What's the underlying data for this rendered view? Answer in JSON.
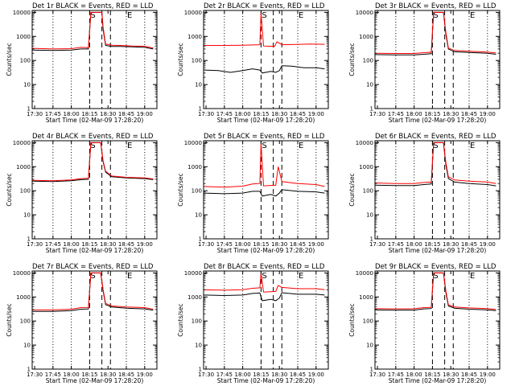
{
  "x_ticks": [
    "17:30",
    "17:45",
    "18:00",
    "18:15",
    "18:30",
    "18:45",
    "19:00"
  ],
  "y_ticks": [
    "1",
    "10",
    "100",
    "1000",
    "10000"
  ],
  "xlabel": "Start Time (02-Mar-09 17:28:20)",
  "ylabel": "Counts/sec",
  "markers": {
    "start": "S",
    "end": "E"
  },
  "colors": {
    "events": "#000000",
    "lld": "#ff0000",
    "frame": "#000000"
  },
  "chart_data": [
    {
      "type": "line",
      "title": "Det 1r BLACK = Events, RED = LLD",
      "xlim": [
        "17:28",
        "19:10"
      ],
      "ylim": [
        1,
        12000
      ],
      "yscale": "log",
      "vlines_dotted": [
        "17:45",
        "18:00",
        "18:45",
        "19:00"
      ],
      "vlines_dashed": [
        "18:15",
        "18:25",
        "18:32"
      ],
      "series": [
        {
          "x": [
            "17:28",
            "17:45",
            "18:00",
            "18:08",
            "18:14",
            "18:16",
            "18:25",
            "18:26",
            "18:28",
            "18:33",
            "18:40",
            "18:50",
            "19:00",
            "19:07"
          ],
          "values": [
            270,
            260,
            270,
            300,
            300,
            10000,
            10000,
            2000,
            420,
            380,
            380,
            370,
            350,
            300
          ]
        },
        {
          "x": [
            "17:28",
            "17:45",
            "18:00",
            "18:08",
            "18:14",
            "18:16",
            "18:25",
            "18:26",
            "18:28",
            "18:33",
            "18:40",
            "18:50",
            "19:00",
            "19:07"
          ],
          "values": [
            320,
            300,
            310,
            350,
            340,
            10000,
            10000,
            2500,
            480,
            430,
            420,
            400,
            390,
            330
          ]
        }
      ]
    },
    {
      "type": "line",
      "title": "Det 2r BLACK = Events, RED = LLD",
      "xlim": [
        "17:28",
        "19:10"
      ],
      "ylim": [
        1,
        12000
      ],
      "yscale": "log",
      "vlines_dotted": [
        "17:45",
        "18:00",
        "18:45",
        "19:00"
      ],
      "vlines_dashed": [
        "18:15",
        "18:25",
        "18:32"
      ],
      "series": [
        {
          "x": [
            "17:28",
            "17:40",
            "17:50",
            "18:00",
            "18:08",
            "18:14",
            "18:16",
            "18:23",
            "18:27",
            "18:30",
            "18:32",
            "18:40",
            "18:50",
            "19:00",
            "19:07"
          ],
          "values": [
            40,
            38,
            32,
            38,
            45,
            40,
            30,
            35,
            32,
            38,
            60,
            58,
            50,
            50,
            45
          ]
        },
        {
          "x": [
            "17:28",
            "17:45",
            "18:00",
            "18:14",
            "18:15",
            "18:17",
            "18:26",
            "18:28",
            "18:32",
            "18:40",
            "18:55",
            "19:07"
          ],
          "values": [
            420,
            420,
            430,
            450,
            10000,
            400,
            380,
            600,
            450,
            460,
            480,
            470
          ]
        }
      ]
    },
    {
      "type": "line",
      "title": "Det 3r BLACK = Events, RED = LLD",
      "xlim": [
        "17:28",
        "19:10"
      ],
      "ylim": [
        1,
        12000
      ],
      "yscale": "log",
      "vlines_dotted": [
        "17:45",
        "18:00",
        "18:45",
        "19:00"
      ],
      "vlines_dashed": [
        "18:15",
        "18:25",
        "18:32"
      ],
      "series": [
        {
          "x": [
            "17:28",
            "17:45",
            "18:00",
            "18:08",
            "18:14",
            "18:16",
            "18:24",
            "18:26",
            "18:28",
            "18:33",
            "18:45",
            "19:00",
            "19:07"
          ],
          "values": [
            175,
            170,
            170,
            180,
            190,
            10000,
            10000,
            1200,
            300,
            230,
            215,
            200,
            180
          ]
        },
        {
          "x": [
            "17:28",
            "17:45",
            "18:00",
            "18:08",
            "18:14",
            "18:16",
            "18:24",
            "18:26",
            "18:28",
            "18:33",
            "18:45",
            "19:00",
            "19:07"
          ],
          "values": [
            200,
            195,
            195,
            210,
            220,
            10000,
            10000,
            1500,
            330,
            260,
            240,
            225,
            205
          ]
        }
      ]
    },
    {
      "type": "line",
      "title": "Det 4r BLACK = Events, RED = LLD",
      "xlim": [
        "17:28",
        "19:10"
      ],
      "ylim": [
        1,
        12000
      ],
      "yscale": "log",
      "vlines_dotted": [
        "17:45",
        "18:00",
        "18:45",
        "19:00"
      ],
      "vlines_dashed": [
        "18:15",
        "18:25",
        "18:32"
      ],
      "series": [
        {
          "x": [
            "17:28",
            "17:45",
            "18:00",
            "18:08",
            "18:14",
            "18:16",
            "18:24",
            "18:26",
            "18:28",
            "18:33",
            "18:45",
            "19:00",
            "19:07"
          ],
          "values": [
            250,
            240,
            260,
            290,
            300,
            10000,
            10000,
            1600,
            600,
            380,
            340,
            320,
            290
          ]
        },
        {
          "x": [
            "17:28",
            "17:45",
            "18:00",
            "18:08",
            "18:14",
            "18:16",
            "18:24",
            "18:26",
            "18:28",
            "18:33",
            "18:45",
            "19:00",
            "19:07"
          ],
          "values": [
            270,
            260,
            280,
            320,
            330,
            10000,
            10000,
            1800,
            650,
            410,
            360,
            340,
            310
          ]
        }
      ]
    },
    {
      "type": "line",
      "title": "Det 5r BLACK = Events, RED = LLD",
      "xlim": [
        "17:28",
        "19:10"
      ],
      "ylim": [
        1,
        12000
      ],
      "yscale": "log",
      "vlines_dotted": [
        "17:45",
        "18:00",
        "18:45",
        "19:00"
      ],
      "vlines_dashed": [
        "18:15",
        "18:25",
        "18:32"
      ],
      "series": [
        {
          "x": [
            "17:28",
            "17:45",
            "18:00",
            "18:08",
            "18:14",
            "18:16",
            "18:23",
            "18:27",
            "18:30",
            "18:32",
            "18:45",
            "19:00",
            "19:07"
          ],
          "values": [
            80,
            75,
            80,
            95,
            95,
            60,
            70,
            60,
            80,
            110,
            95,
            90,
            80
          ]
        },
        {
          "x": [
            "17:28",
            "17:45",
            "18:00",
            "18:08",
            "18:14",
            "18:15",
            "18:17",
            "18:27",
            "18:29",
            "18:32",
            "18:45",
            "19:00",
            "19:07"
          ],
          "values": [
            150,
            140,
            155,
            190,
            200,
            10000,
            160,
            170,
            1000,
            240,
            200,
            180,
            150
          ]
        }
      ]
    },
    {
      "type": "line",
      "title": "Det 6r BLACK = Events, RED = LLD",
      "xlim": [
        "17:28",
        "19:10"
      ],
      "ylim": [
        1,
        12000
      ],
      "yscale": "log",
      "vlines_dotted": [
        "17:45",
        "18:00",
        "18:45",
        "19:00"
      ],
      "vlines_dashed": [
        "18:15",
        "18:25",
        "18:32"
      ],
      "series": [
        {
          "x": [
            "17:28",
            "17:45",
            "18:00",
            "18:08",
            "18:14",
            "18:16",
            "18:24",
            "18:26",
            "18:28",
            "18:33",
            "18:45",
            "19:00",
            "19:07"
          ],
          "values": [
            170,
            165,
            165,
            180,
            190,
            10000,
            10000,
            1200,
            320,
            230,
            200,
            180,
            160
          ]
        },
        {
          "x": [
            "17:28",
            "17:45",
            "18:00",
            "18:08",
            "18:14",
            "18:16",
            "18:24",
            "18:26",
            "18:28",
            "18:33",
            "18:45",
            "19:00",
            "19:07"
          ],
          "values": [
            210,
            200,
            200,
            220,
            230,
            10000,
            10000,
            1500,
            380,
            280,
            250,
            230,
            200
          ]
        }
      ]
    },
    {
      "type": "line",
      "title": "Det 7r BLACK = Events, RED = LLD",
      "xlim": [
        "17:28",
        "19:10"
      ],
      "ylim": [
        1,
        12000
      ],
      "yscale": "log",
      "vlines_dotted": [
        "17:45",
        "18:00",
        "18:45",
        "19:00"
      ],
      "vlines_dashed": [
        "18:15",
        "18:25",
        "18:32"
      ],
      "series": [
        {
          "x": [
            "17:28",
            "17:45",
            "18:00",
            "18:08",
            "18:14",
            "18:16",
            "18:24",
            "18:26",
            "18:28",
            "18:33",
            "18:45",
            "19:00",
            "19:07"
          ],
          "values": [
            250,
            250,
            270,
            310,
            320,
            10000,
            10000,
            1800,
            480,
            380,
            340,
            320,
            280
          ]
        },
        {
          "x": [
            "17:28",
            "17:45",
            "18:00",
            "18:08",
            "18:14",
            "18:16",
            "18:24",
            "18:26",
            "18:28",
            "18:33",
            "18:45",
            "19:00",
            "19:07"
          ],
          "values": [
            290,
            290,
            310,
            360,
            370,
            10000,
            10000,
            2100,
            540,
            420,
            380,
            360,
            310
          ]
        }
      ]
    },
    {
      "type": "line",
      "title": "Det 8r BLACK = Events, RED = LLD",
      "xlim": [
        "17:28",
        "19:10"
      ],
      "ylim": [
        1,
        12000
      ],
      "yscale": "log",
      "vlines_dotted": [
        "17:45",
        "18:00",
        "18:45",
        "19:00"
      ],
      "vlines_dashed": [
        "18:15",
        "18:25",
        "18:32"
      ],
      "series": [
        {
          "x": [
            "17:28",
            "17:45",
            "18:00",
            "18:08",
            "18:14",
            "18:16",
            "18:23",
            "18:27",
            "18:30",
            "18:32",
            "18:45",
            "19:00",
            "19:07"
          ],
          "values": [
            1200,
            1150,
            1200,
            1400,
            1450,
            700,
            800,
            700,
            900,
            1500,
            1300,
            1300,
            1200
          ]
        },
        {
          "x": [
            "17:28",
            "17:45",
            "18:00",
            "18:08",
            "18:14",
            "18:15",
            "18:17",
            "18:27",
            "18:29",
            "18:32",
            "18:45",
            "19:00",
            "19:07"
          ],
          "values": [
            2000,
            1900,
            2000,
            2300,
            2400,
            10000,
            1600,
            1700,
            3000,
            2500,
            2200,
            2200,
            2000
          ]
        }
      ]
    },
    {
      "type": "line",
      "title": "Det 9r BLACK = Events, RED = LLD",
      "xlim": [
        "17:28",
        "19:10"
      ],
      "ylim": [
        1,
        12000
      ],
      "yscale": "log",
      "vlines_dotted": [
        "17:45",
        "18:00",
        "18:45",
        "19:00"
      ],
      "vlines_dashed": [
        "18:15",
        "18:25",
        "18:32"
      ],
      "series": [
        {
          "x": [
            "17:28",
            "17:45",
            "18:00",
            "18:08",
            "18:14",
            "18:16",
            "18:24",
            "18:26",
            "18:28",
            "18:33",
            "18:45",
            "19:00",
            "19:07"
          ],
          "values": [
            290,
            280,
            285,
            320,
            330,
            10000,
            10000,
            1500,
            420,
            340,
            310,
            290,
            270
          ]
        },
        {
          "x": [
            "17:28",
            "17:45",
            "18:00",
            "18:08",
            "18:14",
            "18:16",
            "18:24",
            "18:26",
            "18:28",
            "18:33",
            "18:45",
            "19:00",
            "19:07"
          ],
          "values": [
            330,
            320,
            325,
            360,
            370,
            10000,
            10000,
            1800,
            470,
            380,
            350,
            330,
            300
          ]
        }
      ]
    }
  ]
}
